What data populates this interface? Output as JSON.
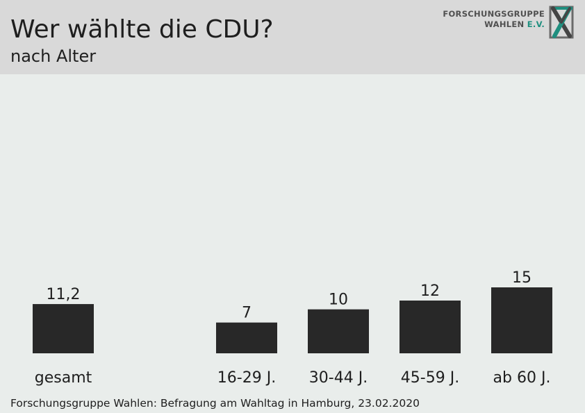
{
  "logo": {
    "line1": "FORSCHUNGSGRUPPE",
    "line2_main": "WAHLEN ",
    "line2_accent": "E.V.",
    "icon": "fgw-x-logo",
    "accent_color": "#1f8f7f"
  },
  "footer": "Forschungsgruppe Wahlen: Befragung am Wahltag in Hamburg, 23.02.2020",
  "chart_data": {
    "type": "bar",
    "title": "Wer wählte die CDU?",
    "subtitle": "nach Alter",
    "categories": [
      "gesamt",
      "16-29 J.",
      "30-44 J.",
      "45-59 J.",
      "ab 60 J."
    ],
    "values": [
      11.2,
      7,
      10,
      12,
      15
    ],
    "value_labels": [
      "11,2",
      "7",
      "10",
      "12",
      "15"
    ],
    "bar_color": "#282828",
    "ylim": [
      0,
      15
    ],
    "xlabel": "",
    "ylabel": "",
    "grid": false,
    "legend": "none"
  }
}
